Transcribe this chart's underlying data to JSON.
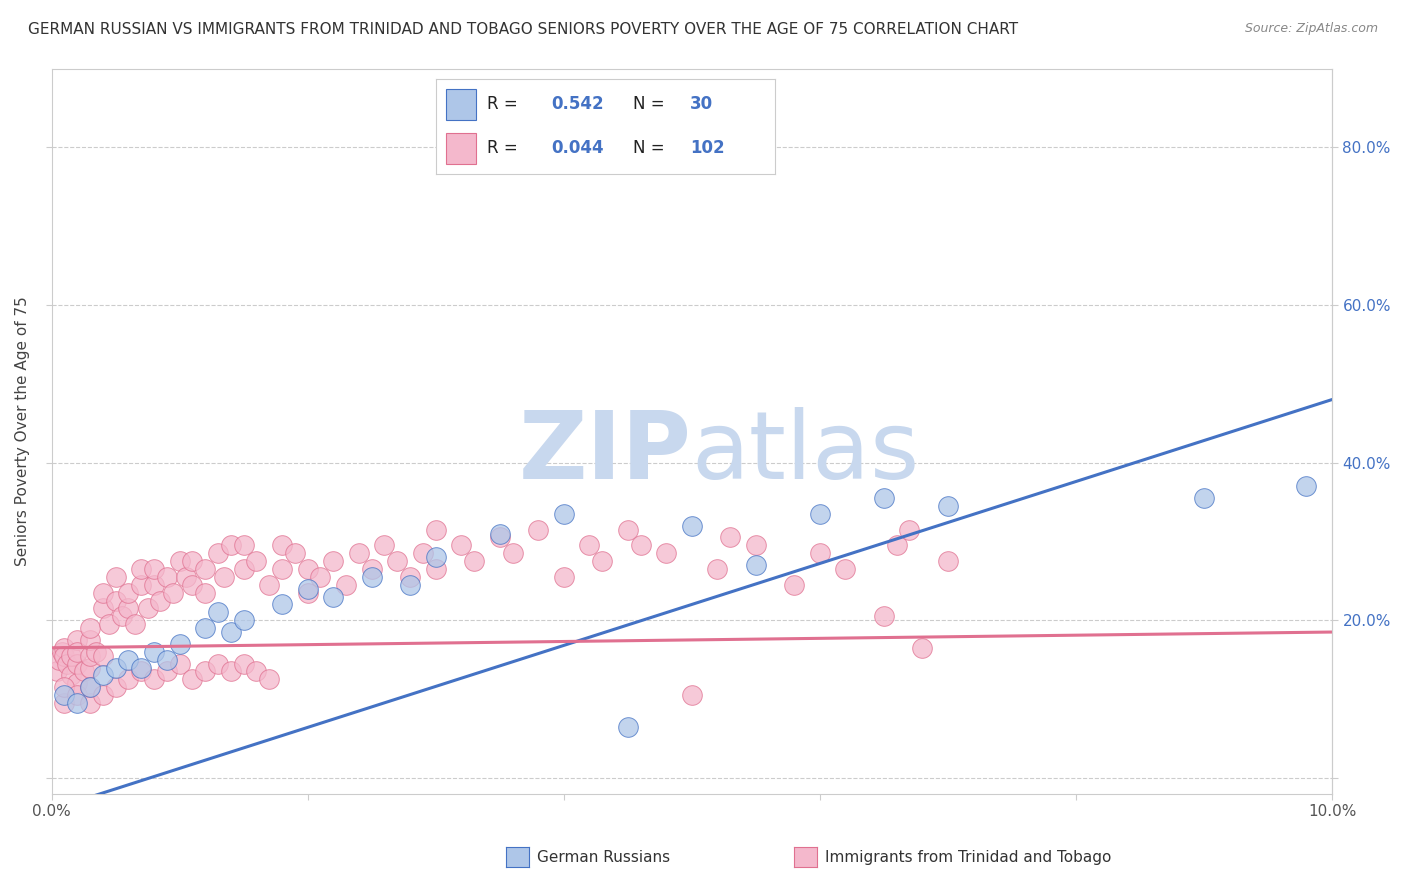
{
  "title": "GERMAN RUSSIAN VS IMMIGRANTS FROM TRINIDAD AND TOBAGO SENIORS POVERTY OVER THE AGE OF 75 CORRELATION CHART",
  "source": "Source: ZipAtlas.com",
  "ylabel": "Seniors Poverty Over the Age of 75",
  "background_color": "#ffffff",
  "watermark_zip": "ZIP",
  "watermark_atlas": "atlas",
  "xlim": [
    0.0,
    0.1
  ],
  "ylim": [
    -0.02,
    0.9
  ],
  "grid_color": "#cccccc",
  "blue_color": "#aec6e8",
  "pink_color": "#f4b8cc",
  "blue_line_color": "#4472c4",
  "pink_line_color": "#e07090",
  "blue_line_x": [
    0.0,
    0.1
  ],
  "blue_line_y": [
    -0.04,
    0.48
  ],
  "pink_line_x": [
    0.0,
    0.1
  ],
  "pink_line_y": [
    0.165,
    0.185
  ],
  "blue_scatter": [
    [
      0.001,
      0.105
    ],
    [
      0.002,
      0.095
    ],
    [
      0.003,
      0.115
    ],
    [
      0.004,
      0.13
    ],
    [
      0.005,
      0.14
    ],
    [
      0.006,
      0.15
    ],
    [
      0.007,
      0.14
    ],
    [
      0.008,
      0.16
    ],
    [
      0.009,
      0.15
    ],
    [
      0.01,
      0.17
    ],
    [
      0.012,
      0.19
    ],
    [
      0.013,
      0.21
    ],
    [
      0.014,
      0.185
    ],
    [
      0.015,
      0.2
    ],
    [
      0.018,
      0.22
    ],
    [
      0.02,
      0.24
    ],
    [
      0.022,
      0.23
    ],
    [
      0.025,
      0.255
    ],
    [
      0.028,
      0.245
    ],
    [
      0.03,
      0.28
    ],
    [
      0.035,
      0.31
    ],
    [
      0.04,
      0.335
    ],
    [
      0.045,
      0.065
    ],
    [
      0.05,
      0.32
    ],
    [
      0.055,
      0.27
    ],
    [
      0.06,
      0.335
    ],
    [
      0.065,
      0.355
    ],
    [
      0.07,
      0.345
    ],
    [
      0.09,
      0.355
    ],
    [
      0.098,
      0.37
    ]
  ],
  "pink_scatter": [
    [
      0.0004,
      0.135
    ],
    [
      0.0006,
      0.15
    ],
    [
      0.0008,
      0.16
    ],
    [
      0.001,
      0.165
    ],
    [
      0.001,
      0.155
    ],
    [
      0.0012,
      0.145
    ],
    [
      0.0015,
      0.13
    ],
    [
      0.0015,
      0.155
    ],
    [
      0.002,
      0.12
    ],
    [
      0.002,
      0.145
    ],
    [
      0.002,
      0.175
    ],
    [
      0.002,
      0.16
    ],
    [
      0.0025,
      0.135
    ],
    [
      0.003,
      0.14
    ],
    [
      0.003,
      0.155
    ],
    [
      0.003,
      0.175
    ],
    [
      0.003,
      0.19
    ],
    [
      0.0035,
      0.16
    ],
    [
      0.004,
      0.155
    ],
    [
      0.004,
      0.215
    ],
    [
      0.004,
      0.235
    ],
    [
      0.0045,
      0.195
    ],
    [
      0.005,
      0.225
    ],
    [
      0.005,
      0.255
    ],
    [
      0.0055,
      0.205
    ],
    [
      0.006,
      0.215
    ],
    [
      0.006,
      0.235
    ],
    [
      0.0065,
      0.195
    ],
    [
      0.007,
      0.245
    ],
    [
      0.007,
      0.265
    ],
    [
      0.0075,
      0.215
    ],
    [
      0.008,
      0.245
    ],
    [
      0.008,
      0.265
    ],
    [
      0.0085,
      0.225
    ],
    [
      0.009,
      0.255
    ],
    [
      0.0095,
      0.235
    ],
    [
      0.01,
      0.275
    ],
    [
      0.0105,
      0.255
    ],
    [
      0.011,
      0.245
    ],
    [
      0.011,
      0.275
    ],
    [
      0.012,
      0.265
    ],
    [
      0.012,
      0.235
    ],
    [
      0.013,
      0.285
    ],
    [
      0.0135,
      0.255
    ],
    [
      0.014,
      0.295
    ],
    [
      0.015,
      0.265
    ],
    [
      0.015,
      0.295
    ],
    [
      0.016,
      0.275
    ],
    [
      0.017,
      0.245
    ],
    [
      0.018,
      0.265
    ],
    [
      0.018,
      0.295
    ],
    [
      0.019,
      0.285
    ],
    [
      0.02,
      0.235
    ],
    [
      0.02,
      0.265
    ],
    [
      0.021,
      0.255
    ],
    [
      0.022,
      0.275
    ],
    [
      0.023,
      0.245
    ],
    [
      0.024,
      0.285
    ],
    [
      0.025,
      0.265
    ],
    [
      0.026,
      0.295
    ],
    [
      0.027,
      0.275
    ],
    [
      0.028,
      0.255
    ],
    [
      0.029,
      0.285
    ],
    [
      0.03,
      0.265
    ],
    [
      0.03,
      0.315
    ],
    [
      0.032,
      0.295
    ],
    [
      0.033,
      0.275
    ],
    [
      0.035,
      0.305
    ],
    [
      0.036,
      0.285
    ],
    [
      0.038,
      0.315
    ],
    [
      0.04,
      0.255
    ],
    [
      0.042,
      0.295
    ],
    [
      0.043,
      0.275
    ],
    [
      0.045,
      0.315
    ],
    [
      0.046,
      0.295
    ],
    [
      0.048,
      0.285
    ],
    [
      0.05,
      0.105
    ],
    [
      0.052,
      0.265
    ],
    [
      0.053,
      0.305
    ],
    [
      0.055,
      0.295
    ],
    [
      0.058,
      0.245
    ],
    [
      0.06,
      0.285
    ],
    [
      0.062,
      0.265
    ],
    [
      0.065,
      0.205
    ],
    [
      0.066,
      0.295
    ],
    [
      0.067,
      0.315
    ],
    [
      0.068,
      0.165
    ],
    [
      0.07,
      0.275
    ],
    [
      0.001,
      0.095
    ],
    [
      0.001,
      0.115
    ],
    [
      0.002,
      0.105
    ],
    [
      0.003,
      0.095
    ],
    [
      0.003,
      0.115
    ],
    [
      0.004,
      0.105
    ],
    [
      0.005,
      0.115
    ],
    [
      0.006,
      0.125
    ],
    [
      0.007,
      0.135
    ],
    [
      0.008,
      0.125
    ],
    [
      0.009,
      0.135
    ],
    [
      0.01,
      0.145
    ],
    [
      0.011,
      0.125
    ],
    [
      0.012,
      0.135
    ],
    [
      0.013,
      0.145
    ],
    [
      0.014,
      0.135
    ],
    [
      0.015,
      0.145
    ],
    [
      0.016,
      0.135
    ],
    [
      0.017,
      0.125
    ]
  ],
  "title_fontsize": 11,
  "source_fontsize": 9,
  "ylabel_fontsize": 11
}
